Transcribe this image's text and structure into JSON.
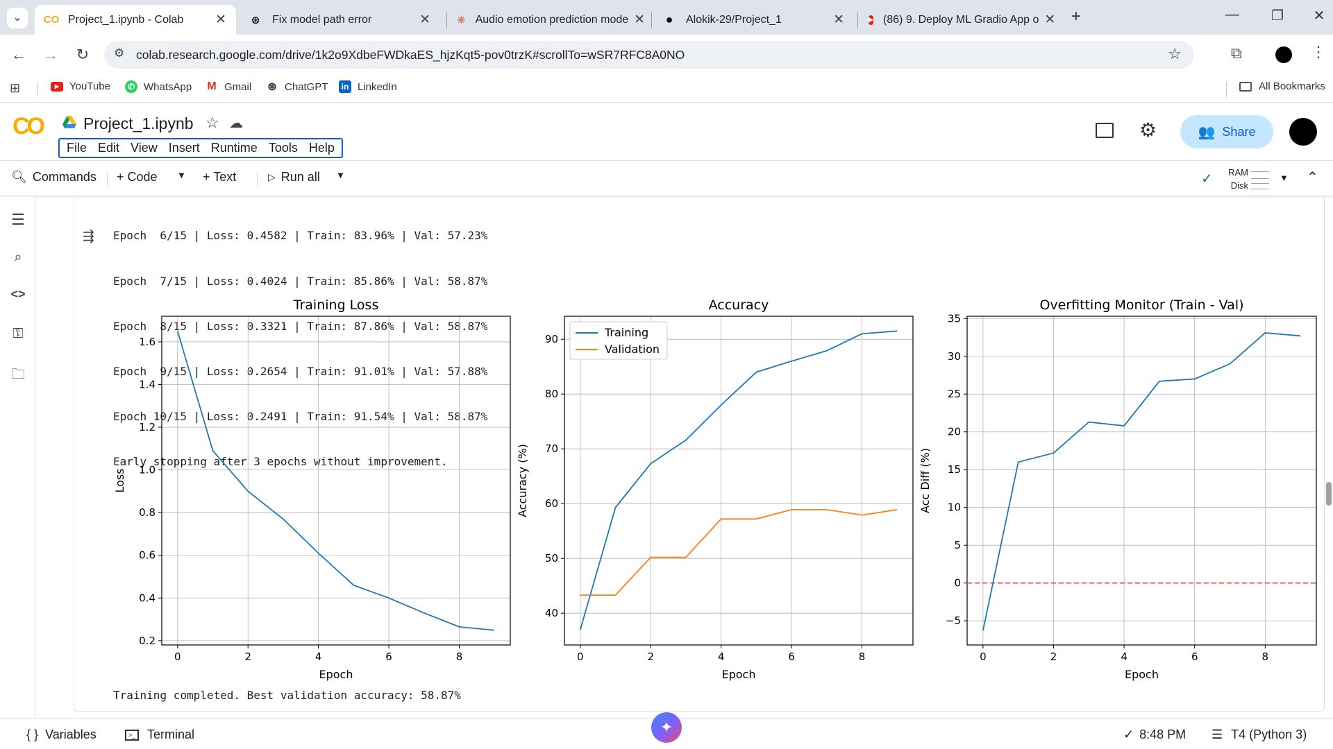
{
  "browser": {
    "tabs": [
      {
        "title": "Project_1.ipynb - Colab",
        "icon": "colab-icon",
        "active": true
      },
      {
        "title": "Fix model path error",
        "icon": "chatgpt-icon"
      },
      {
        "title": "Audio emotion prediction mode",
        "icon": "claude-icon"
      },
      {
        "title": "Alokik-29/Project_1",
        "icon": "github-icon"
      },
      {
        "title": "(86) 9. Deploy ML Gradio App o",
        "icon": "youtube-icon"
      }
    ],
    "url": "colab.research.google.com/drive/1k2o9XdbeFWDkaES_hjzKqt5-pov0trzK#scrollTo=wSR7RFC8A0NO",
    "bookmarks": [
      "YouTube",
      "WhatsApp",
      "Gmail",
      "ChatGPT",
      "LinkedIn"
    ],
    "all_bookmarks": "All Bookmarks"
  },
  "colab": {
    "notebook_title": "Project_1.ipynb",
    "menu": [
      "File",
      "Edit",
      "View",
      "Insert",
      "Runtime",
      "Tools",
      "Help"
    ],
    "share_label": "Share",
    "toolbar": {
      "commands": "Commands",
      "code": "+ Code",
      "text": "+ Text",
      "run_all": "Run all",
      "ram": "RAM",
      "disk": "Disk"
    }
  },
  "output": {
    "lines": [
      "Epoch  6/15 | Loss: 0.4582 | Train: 83.96% | Val: 57.23%",
      "Epoch  7/15 | Loss: 0.4024 | Train: 85.86% | Val: 58.87%",
      "Epoch  8/15 | Loss: 0.3321 | Train: 87.86% | Val: 58.87%",
      "Epoch  9/15 | Loss: 0.2654 | Train: 91.01% | Val: 57.88%",
      "Epoch 10/15 | Loss: 0.2491 | Train: 91.54% | Val: 58.87%",
      "Early stopping after 3 epochs without improvement."
    ],
    "final_line": "Training completed. Best validation accuracy: 58.87%"
  },
  "chart_data": [
    {
      "type": "line",
      "title": "Training Loss",
      "xlabel": "Epoch",
      "ylabel": "Loss",
      "x": [
        0,
        1,
        2,
        3,
        4,
        5,
        6,
        7,
        8,
        9
      ],
      "xticks": [
        0,
        2,
        4,
        6,
        8
      ],
      "yticks": [
        "0.2",
        "0.4",
        "0.6",
        "0.8",
        "1.0",
        "1.2",
        "1.4",
        "1.6"
      ],
      "xlim": [
        -0.45,
        9.45
      ],
      "ylim": [
        0.18,
        1.72
      ],
      "grid": true,
      "series": [
        {
          "values": [
            1.65,
            1.09,
            0.9,
            0.77,
            0.61,
            0.46,
            0.4,
            0.33,
            0.265,
            0.249
          ],
          "color": "#1f77b4"
        }
      ]
    },
    {
      "type": "line",
      "title": "Accuracy",
      "xlabel": "Epoch",
      "ylabel": "Accuracy (%)",
      "x": [
        0,
        1,
        2,
        3,
        4,
        5,
        6,
        7,
        8,
        9
      ],
      "xticks": [
        0,
        2,
        4,
        6,
        8
      ],
      "yticks": [
        "40",
        "50",
        "60",
        "70",
        "80",
        "90"
      ],
      "xlim": [
        -0.45,
        9.45
      ],
      "ylim": [
        34.2,
        94.2
      ],
      "grid": true,
      "legend": "top-left",
      "series": [
        {
          "name": "Training",
          "values": [
            37.0,
            59.3,
            67.3,
            71.6,
            78.0,
            84.0,
            86.0,
            87.9,
            91.0,
            91.5
          ],
          "color": "#1f77b4"
        },
        {
          "name": "Validation",
          "values": [
            43.3,
            43.3,
            50.2,
            50.2,
            57.2,
            57.2,
            58.9,
            58.9,
            57.9,
            58.9
          ],
          "color": "#ff7f0e"
        }
      ]
    },
    {
      "type": "line",
      "title": "Overfitting Monitor (Train - Val)",
      "xlabel": "Epoch",
      "ylabel": "Acc Diff (%)",
      "x": [
        0,
        1,
        2,
        3,
        4,
        5,
        6,
        7,
        8,
        9
      ],
      "xticks": [
        0,
        2,
        4,
        6,
        8
      ],
      "yticks": [
        "−5",
        "0",
        "5",
        "10",
        "15",
        "20",
        "25",
        "30",
        "35"
      ],
      "xlim": [
        -0.45,
        9.45
      ],
      "ylim": [
        -8.2,
        35.3
      ],
      "grid": true,
      "reference_line": {
        "y": 0,
        "color": "#e8413c",
        "style": "dashed"
      },
      "series": [
        {
          "values": [
            -6.3,
            16.0,
            17.2,
            21.3,
            20.8,
            26.7,
            27.0,
            29.0,
            33.1,
            32.7
          ],
          "color": "#1f77b4"
        }
      ]
    }
  ],
  "status": {
    "variables": "Variables",
    "terminal": "Terminal",
    "time": "8:48 PM",
    "runtime": "T4 (Python 3)"
  }
}
